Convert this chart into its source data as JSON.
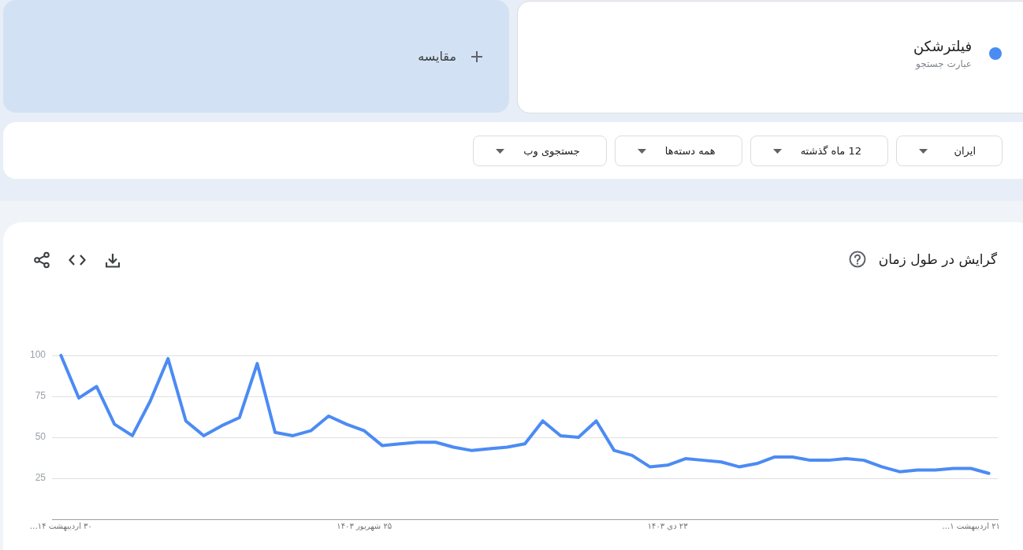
{
  "chart_data": {
    "type": "line",
    "title": "گرایش در طول زمان",
    "annotations": [
      "عبارت جستجو",
      "مقایسه",
      "ایران",
      "12 ماه گذشته",
      "همه دسته‌ها",
      "جستجوی وب"
    ],
    "categories": [
      "۳۰ اردیبهشت ۱۴…",
      null,
      null,
      null,
      null,
      null,
      null,
      null,
      null,
      null,
      null,
      null,
      null,
      null,
      null,
      null,
      null,
      "۲۵ شهریور ۱۴۰۳",
      null,
      null,
      null,
      null,
      null,
      null,
      null,
      null,
      null,
      null,
      null,
      null,
      null,
      null,
      null,
      null,
      "۲۳ دی ۱۴۰۳",
      null,
      null,
      null,
      null,
      null,
      null,
      null,
      null,
      null,
      null,
      null,
      null,
      null,
      null,
      null,
      null,
      "۲۱ اردیبهشت ۱…",
      null
    ],
    "series": [
      {
        "name": "فیلترشکن",
        "color": "#4b8bf4",
        "values": [
          100,
          74,
          81,
          58,
          51,
          72,
          98,
          60,
          51,
          57,
          62,
          95,
          53,
          51,
          54,
          63,
          58,
          54,
          45,
          46,
          47,
          47,
          44,
          42,
          43,
          44,
          46,
          60,
          51,
          50,
          60,
          42,
          39,
          32,
          33,
          37,
          36,
          35,
          32,
          34,
          38,
          38,
          36,
          36,
          37,
          36,
          32,
          29,
          30,
          30,
          31,
          31,
          28
        ]
      }
    ],
    "ylim": [
      0,
      100
    ],
    "yticks": [
      25,
      50,
      75,
      100
    ],
    "grid": "y",
    "legend": "top right"
  }
}
